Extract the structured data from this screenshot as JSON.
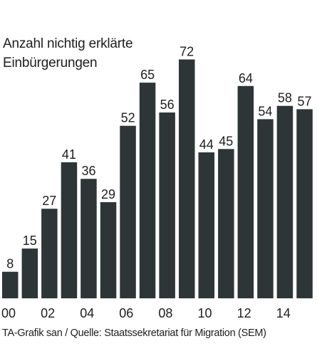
{
  "chart_data": {
    "type": "bar",
    "title": "Anzahl nichtig erklärte Einbürgerungen",
    "xlabel": "",
    "ylabel": "",
    "categories": [
      "00",
      "01",
      "02",
      "03",
      "04",
      "05",
      "06",
      "07",
      "08",
      "09",
      "10",
      "11",
      "12",
      "13",
      "14",
      "15"
    ],
    "x_tick_labels": [
      "00",
      "02",
      "04",
      "06",
      "08",
      "10",
      "12",
      "14"
    ],
    "values": [
      8,
      15,
      27,
      41,
      36,
      29,
      52,
      65,
      56,
      72,
      44,
      45,
      64,
      54,
      58,
      57
    ],
    "ylim": [
      0,
      80
    ],
    "grid": false,
    "bar_color": "#2d3537",
    "text_color": "#1e1e1e"
  },
  "source": "TA-Grafik san / Quelle: Staatssekretariat für Migration (SEM)"
}
